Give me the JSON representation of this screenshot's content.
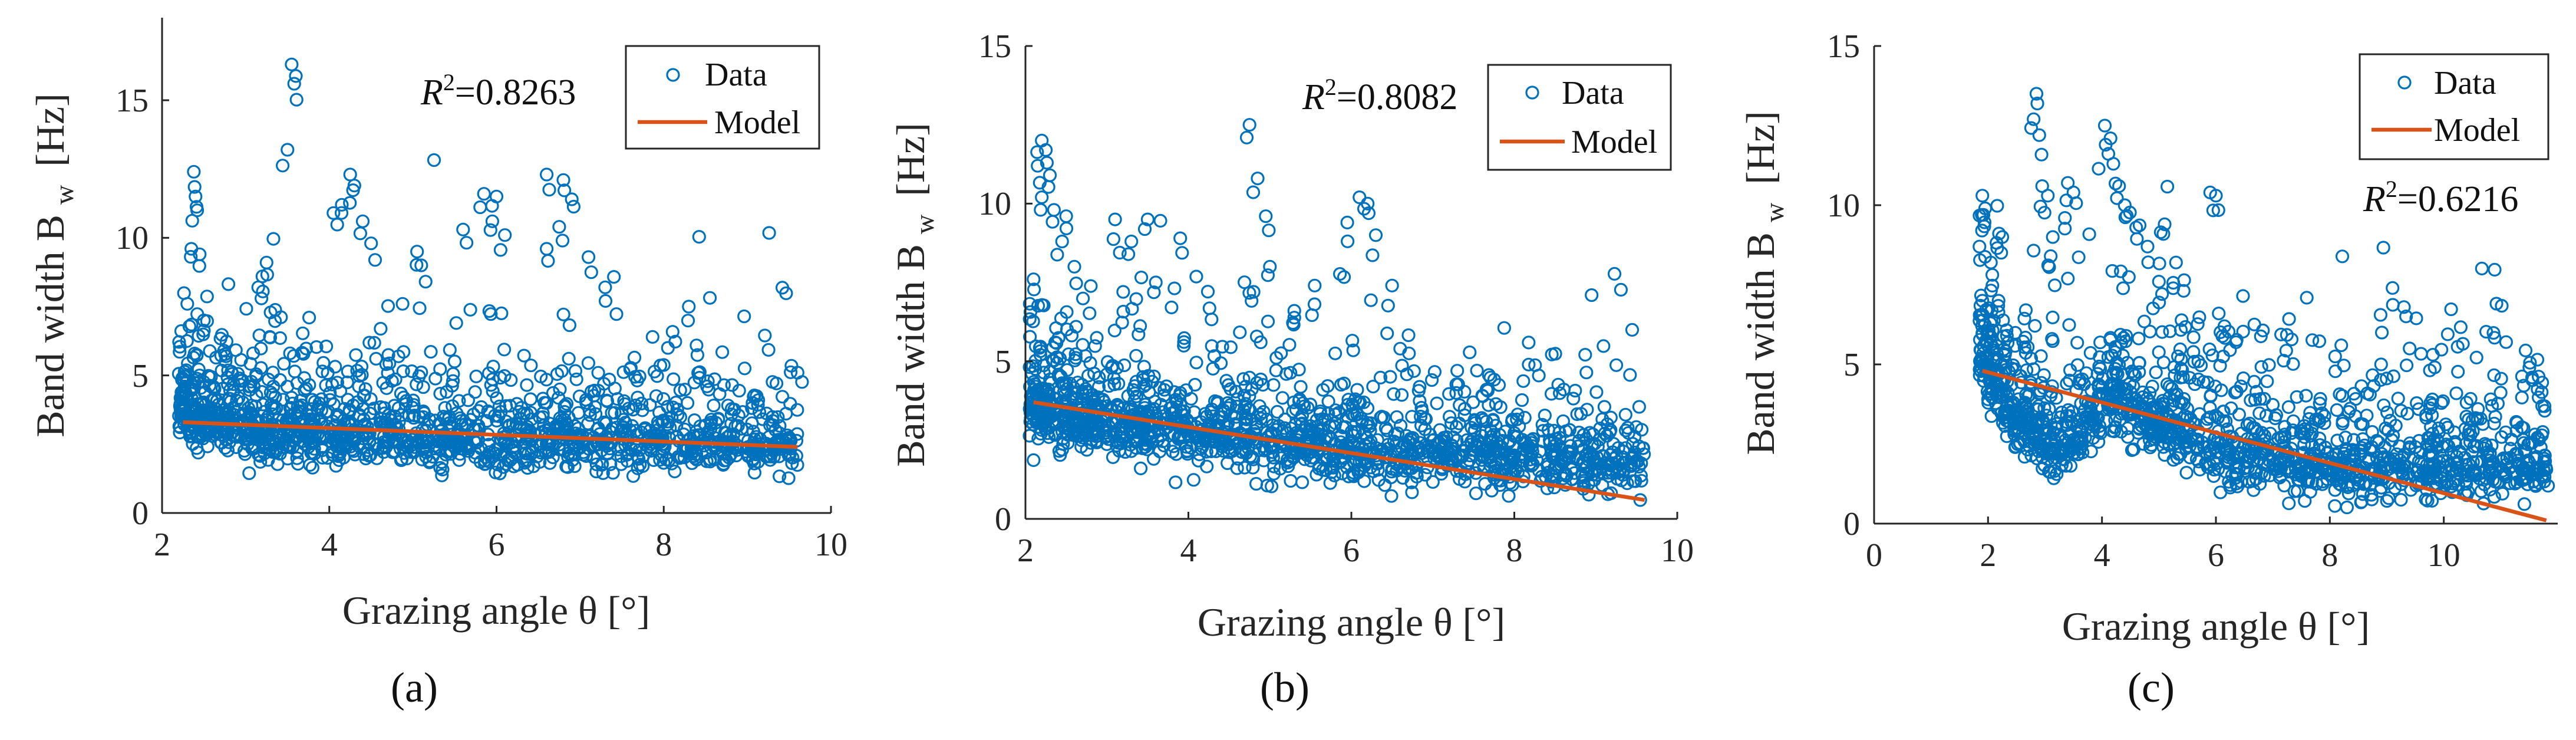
{
  "colors": {
    "data": "#0072BD",
    "model": "#D95319"
  },
  "chart_data": [
    {
      "type": "scatter",
      "panel": "(a)",
      "xlabel": "Grazing angle θ [°]",
      "ylabel": "Band width B",
      "ylabel_sub": "w",
      "ylabel_unit": "[Hz]",
      "xlim": [
        2,
        10
      ],
      "ylim": [
        0,
        18
      ],
      "xticks": [
        2,
        4,
        6,
        8,
        10
      ],
      "yticks": [
        0,
        5,
        10,
        15
      ],
      "legend": [
        "Data",
        "Model"
      ],
      "legend_position": "top-right",
      "r2_prefix": "R",
      "r2_value": "=0.8263",
      "r2_position": "top-center",
      "model_line": {
        "x": [
          2.25,
          9.6
        ],
        "y": [
          3.3,
          2.4
        ]
      },
      "data_summary": {
        "x_range": [
          2.2,
          9.6
        ],
        "trend": {
          "x": [
            2.2,
            3,
            4,
            5,
            6,
            7,
            8,
            9,
            9.6
          ],
          "y": [
            3.6,
            2.9,
            2.6,
            2.5,
            2.5,
            2.5,
            2.4,
            2.3,
            2.3
          ]
        },
        "spread_above": 2.8,
        "highlights": [
          {
            "x": 3.55,
            "y": 16.3
          },
          {
            "x": 3.58,
            "y": 15.6
          },
          {
            "x": 3.5,
            "y": 13.2
          },
          {
            "x": 2.38,
            "y": 12.4
          },
          {
            "x": 2.4,
            "y": 11.5
          },
          {
            "x": 2.42,
            "y": 11.0
          },
          {
            "x": 2.35,
            "y": 9.6
          },
          {
            "x": 2.45,
            "y": 9.4
          },
          {
            "x": 2.5,
            "y": 7.0
          },
          {
            "x": 3.25,
            "y": 9.1
          },
          {
            "x": 3.2,
            "y": 8.6
          },
          {
            "x": 3.15,
            "y": 8.2
          },
          {
            "x": 4.25,
            "y": 12.3
          },
          {
            "x": 4.3,
            "y": 11.9
          },
          {
            "x": 4.15,
            "y": 11.2
          },
          {
            "x": 4.4,
            "y": 10.6
          },
          {
            "x": 4.05,
            "y": 10.9
          },
          {
            "x": 4.5,
            "y": 9.8
          },
          {
            "x": 5.05,
            "y": 9.5
          },
          {
            "x": 5.1,
            "y": 9.0
          },
          {
            "x": 5.6,
            "y": 10.3
          },
          {
            "x": 5.85,
            "y": 11.6
          },
          {
            "x": 6.0,
            "y": 11.5
          },
          {
            "x": 5.95,
            "y": 10.6
          },
          {
            "x": 6.1,
            "y": 10.1
          },
          {
            "x": 6.6,
            "y": 12.3
          },
          {
            "x": 6.8,
            "y": 12.1
          },
          {
            "x": 6.9,
            "y": 11.4
          },
          {
            "x": 6.75,
            "y": 10.4
          },
          {
            "x": 7.1,
            "y": 9.3
          },
          {
            "x": 8.3,
            "y": 7.5
          },
          {
            "x": 8.05,
            "y": 6.0
          },
          {
            "x": 9.6,
            "y": 5.1
          },
          {
            "x": 6.6,
            "y": 9.6
          },
          {
            "x": 7.3,
            "y": 8.2
          }
        ]
      }
    },
    {
      "type": "scatter",
      "panel": "(b)",
      "xlabel": "Grazing angle θ [°]",
      "ylabel": "Band width B",
      "ylabel_sub": "w",
      "ylabel_unit": "[Hz]",
      "xlim": [
        2,
        10
      ],
      "ylim": [
        0,
        15
      ],
      "xticks": [
        2,
        4,
        6,
        8,
        10
      ],
      "yticks": [
        0,
        5,
        10,
        15
      ],
      "legend": [
        "Data",
        "Model"
      ],
      "legend_position": "top-right",
      "r2_prefix": "R",
      "r2_value": "=0.8082",
      "r2_position": "top-center",
      "model_line": {
        "x": [
          2.1,
          9.6
        ],
        "y": [
          3.7,
          0.6
        ]
      },
      "data_summary": {
        "x_range": [
          2.05,
          9.6
        ],
        "trend": {
          "x": [
            2.05,
            3,
            4,
            5,
            6,
            7,
            8,
            9,
            9.6
          ],
          "y": [
            3.4,
            2.9,
            2.6,
            2.3,
            2.0,
            1.9,
            1.8,
            1.7,
            1.7
          ]
        },
        "spread_above": 2.2,
        "highlights": [
          {
            "x": 2.2,
            "y": 12.0
          },
          {
            "x": 2.25,
            "y": 11.7
          },
          {
            "x": 2.15,
            "y": 11.2
          },
          {
            "x": 2.3,
            "y": 10.9
          },
          {
            "x": 2.2,
            "y": 10.2
          },
          {
            "x": 2.35,
            "y": 9.8
          },
          {
            "x": 2.5,
            "y": 9.6
          },
          {
            "x": 2.45,
            "y": 8.8
          },
          {
            "x": 2.1,
            "y": 7.6
          },
          {
            "x": 2.6,
            "y": 8.0
          },
          {
            "x": 3.1,
            "y": 9.5
          },
          {
            "x": 3.5,
            "y": 9.5
          },
          {
            "x": 3.3,
            "y": 8.8
          },
          {
            "x": 3.9,
            "y": 8.9
          },
          {
            "x": 3.2,
            "y": 7.2
          },
          {
            "x": 3.6,
            "y": 7.5
          },
          {
            "x": 4.75,
            "y": 12.5
          },
          {
            "x": 4.85,
            "y": 10.8
          },
          {
            "x": 4.95,
            "y": 9.6
          },
          {
            "x": 5.0,
            "y": 8.0
          },
          {
            "x": 4.8,
            "y": 7.2
          },
          {
            "x": 6.1,
            "y": 10.2
          },
          {
            "x": 6.2,
            "y": 10.0
          },
          {
            "x": 5.95,
            "y": 9.4
          },
          {
            "x": 6.3,
            "y": 9.0
          },
          {
            "x": 6.5,
            "y": 7.4
          },
          {
            "x": 6.6,
            "y": 5.4
          },
          {
            "x": 7.3,
            "y": 4.7
          },
          {
            "x": 5.3,
            "y": 6.6
          },
          {
            "x": 5.55,
            "y": 7.4
          },
          {
            "x": 7.6,
            "y": 3.2
          },
          {
            "x": 8.6,
            "y": 3.1
          }
        ]
      }
    },
    {
      "type": "scatter",
      "panel": "(c)",
      "xlabel": "Grazing angle θ [°]",
      "ylabel": "Band width B",
      "ylabel_sub": "w",
      "ylabel_unit": "[Hz]",
      "xlim": [
        0,
        12
      ],
      "ylim": [
        0,
        15
      ],
      "xticks": [
        0,
        2,
        4,
        6,
        8,
        10
      ],
      "yticks": [
        0,
        5,
        10,
        15
      ],
      "legend": [
        "Data",
        "Model"
      ],
      "legend_position": "top-right",
      "r2_prefix": "R",
      "r2_value": "=0.6216",
      "r2_position": "right",
      "model_line": {
        "x": [
          1.9,
          11.8
        ],
        "y": [
          4.8,
          0.1
        ]
      },
      "data_summary": {
        "x_range": [
          1.85,
          11.8
        ],
        "trend": {
          "x": [
            1.85,
            2.5,
            3,
            3.5,
            4,
            5,
            6,
            7,
            8,
            9,
            10,
            11,
            11.8
          ],
          "y": [
            5.2,
            3.0,
            2.5,
            2.2,
            3.8,
            3.0,
            2.2,
            1.8,
            1.7,
            1.6,
            1.4,
            1.5,
            1.6
          ]
        },
        "spread_above": 2.8,
        "highlights": [
          {
            "x": 1.9,
            "y": 10.3
          },
          {
            "x": 1.95,
            "y": 9.9
          },
          {
            "x": 1.85,
            "y": 8.7
          },
          {
            "x": 2.05,
            "y": 8.2
          },
          {
            "x": 1.9,
            "y": 7.0
          },
          {
            "x": 2.25,
            "y": 9.0
          },
          {
            "x": 2.85,
            "y": 13.5
          },
          {
            "x": 2.8,
            "y": 12.7
          },
          {
            "x": 2.9,
            "y": 12.2
          },
          {
            "x": 2.95,
            "y": 10.6
          },
          {
            "x": 3.05,
            "y": 10.3
          },
          {
            "x": 3.4,
            "y": 10.7
          },
          {
            "x": 3.5,
            "y": 10.4
          },
          {
            "x": 3.35,
            "y": 9.6
          },
          {
            "x": 3.1,
            "y": 8.4
          },
          {
            "x": 4.05,
            "y": 12.5
          },
          {
            "x": 4.15,
            "y": 12.1
          },
          {
            "x": 4.2,
            "y": 11.3
          },
          {
            "x": 4.3,
            "y": 10.6
          },
          {
            "x": 4.4,
            "y": 10.0
          },
          {
            "x": 4.6,
            "y": 9.3
          },
          {
            "x": 4.8,
            "y": 8.7
          },
          {
            "x": 5.1,
            "y": 9.4
          },
          {
            "x": 5.3,
            "y": 8.2
          },
          {
            "x": 5.0,
            "y": 7.6
          },
          {
            "x": 5.9,
            "y": 10.4
          },
          {
            "x": 6.0,
            "y": 10.3
          },
          {
            "x": 6.05,
            "y": 6.6
          },
          {
            "x": 6.15,
            "y": 6.2
          },
          {
            "x": 9.1,
            "y": 7.4
          },
          {
            "x": 9.3,
            "y": 6.8
          },
          {
            "x": 8.2,
            "y": 5.6
          },
          {
            "x": 9.4,
            "y": 5.5
          },
          {
            "x": 8.9,
            "y": 5.0
          },
          {
            "x": 9.8,
            "y": 3.9
          },
          {
            "x": 10.4,
            "y": 3.8
          },
          {
            "x": 10.6,
            "y": 3.6
          },
          {
            "x": 11.4,
            "y": 3.0
          },
          {
            "x": 11.6,
            "y": 2.8
          },
          {
            "x": 11.8,
            "y": 1.7
          }
        ]
      }
    }
  ]
}
